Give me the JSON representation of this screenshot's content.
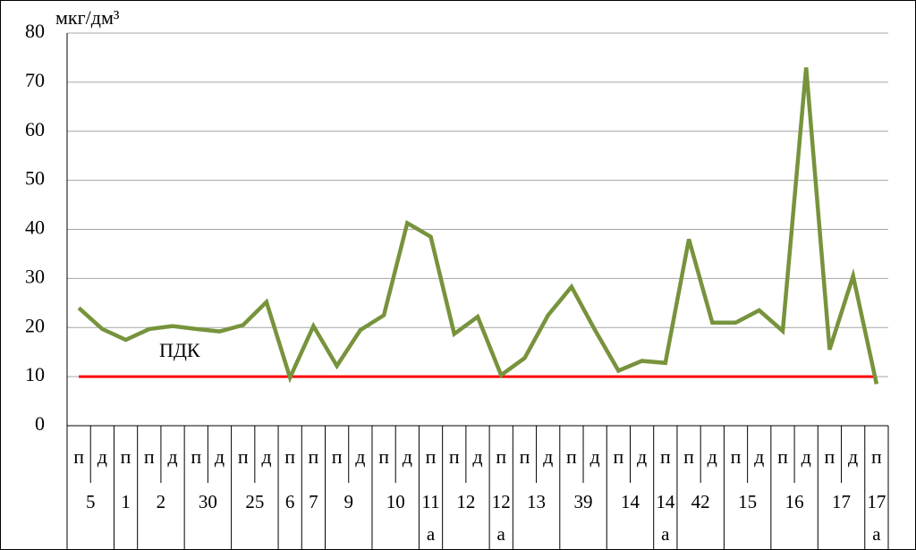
{
  "chart_data": {
    "type": "line",
    "y_label": "мкг/дм³",
    "categories": [
      "п",
      "д",
      "п",
      "п",
      "д",
      "п",
      "д",
      "п",
      "д",
      "п",
      "п",
      "п",
      "д",
      "п",
      "д",
      "п",
      "п",
      "д",
      "п",
      "п",
      "д",
      "п",
      "д",
      "п",
      "д",
      "п",
      "п",
      "д",
      "п",
      "д",
      "п",
      "д",
      "п",
      "д",
      "п"
    ],
    "group_labels": [
      "5",
      null,
      "1",
      "2",
      null,
      "30",
      null,
      "25",
      null,
      "6",
      "7",
      "9",
      null,
      "10",
      null,
      "11а",
      "12",
      null,
      "12а",
      "13",
      null,
      "39",
      null,
      "14",
      null,
      "14а",
      "42",
      null,
      "15",
      null,
      "16",
      null,
      "17",
      null,
      "17а"
    ],
    "series": [
      {
        "color": "#77933c",
        "values": [
          24,
          19.7,
          17.5,
          19.7,
          20.3,
          19.7,
          19.2,
          20.5,
          25.2,
          9.8,
          20.3,
          12.2,
          19.5,
          22.5,
          41.3,
          38.5,
          18.7,
          22.2,
          10.3,
          13.8,
          22.5,
          28.3,
          19.5,
          11.2,
          13.2,
          12.8,
          38,
          21,
          21,
          23.5,
          19.3,
          73,
          15.5,
          30.5,
          8.5
        ]
      },
      {
        "name": "ПДК",
        "color": "#ff0000",
        "values": [
          10,
          10,
          10,
          10,
          10,
          10,
          10,
          10,
          10,
          10,
          10,
          10,
          10,
          10,
          10,
          10,
          10,
          10,
          10,
          10,
          10,
          10,
          10,
          10,
          10,
          10,
          10,
          10,
          10,
          10,
          10,
          10,
          10,
          10,
          10
        ]
      }
    ],
    "ylim": [
      0,
      80
    ],
    "yticks": [
      0,
      10,
      20,
      30,
      40,
      50,
      60,
      70,
      80
    ],
    "grid": true
  }
}
